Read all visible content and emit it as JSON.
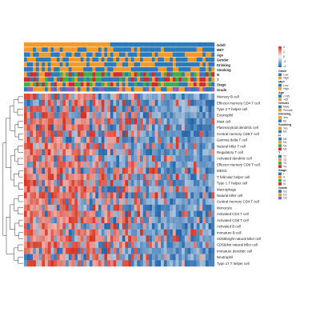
{
  "chart_data": {
    "type": "heatmap",
    "title": "",
    "xlabel": "",
    "ylabel": "",
    "annotation_tracks": [
      "Gdsfr",
      "MET",
      "Age",
      "Gender",
      "Drinking",
      "Smoking",
      "N",
      "T",
      "Stage",
      "Grade"
    ],
    "rows": [
      "Memory B cell",
      "Effector memory CD4 T cell",
      "Type 2 T helper cell",
      "Eosinophil",
      "Mast cell",
      "Plasmacytoid dendritic cell",
      "Central memory CD8 T cell",
      "Gamma delta T cell",
      "Natural killer T cell",
      "Regulatory T cell",
      "Activated dendritic cell",
      "Effector memory CD8 T cell",
      "MDSC",
      "T follicular helper cell",
      "Type 1 T helper cell",
      "Macrophage",
      "Natural killer cell",
      "Central memory CD4 T cell",
      "Monocyte",
      "Activated CD4 T cell",
      "Activated CD8 T cell",
      "Activated B cell",
      "Immature B cell",
      "CD56bright natural killer cell",
      "CD56dim natural killer cell",
      "Immature dendritic cell",
      "Neutrophil",
      "Type 17 T helper cell"
    ],
    "n_columns": 64,
    "red_fraction_by_column": [
      0.9,
      0.88,
      0.86,
      0.85,
      0.84,
      0.83,
      0.82,
      0.8,
      0.79,
      0.78,
      0.76,
      0.75,
      0.73,
      0.72,
      0.7,
      0.69,
      0.67,
      0.66,
      0.64,
      0.63,
      0.61,
      0.6,
      0.58,
      0.57,
      0.55,
      0.54,
      0.52,
      0.51,
      0.49,
      0.48,
      0.46,
      0.45,
      0.43,
      0.42,
      0.4,
      0.39,
      0.37,
      0.36,
      0.34,
      0.33,
      0.31,
      0.3,
      0.28,
      0.27,
      0.25,
      0.24,
      0.22,
      0.21,
      0.2,
      0.19,
      0.18,
      0.17,
      0.16,
      0.15,
      0.14,
      0.13,
      0.12,
      0.11,
      0.1,
      0.1,
      0.09,
      0.08,
      0.07,
      0.06
    ],
    "color_scale": {
      "low": "#2166ac",
      "mid": "#f7f7f7",
      "high": "#d7301f"
    },
    "legends": [
      {
        "title": "",
        "type": "gradient",
        "labels": [
          "4",
          "2",
          "0",
          "-2",
          "-4"
        ]
      },
      {
        "title": "Gdsfr",
        "type": "categorical",
        "entries": [
          {
            "label": "Low",
            "color": "#2b7bba"
          },
          {
            "label": "High",
            "color": "#f39a2b"
          }
        ]
      },
      {
        "title": "MET",
        "type": "categorical",
        "entries": [
          {
            "label": "Low",
            "color": "#2b7bba"
          },
          {
            "label": "High",
            "color": "#f39a2b"
          }
        ]
      },
      {
        "title": "Age",
        "type": "categorical",
        "entries": [
          {
            "label": "<=65",
            "color": "#2b7bba"
          },
          {
            "label": ">65",
            "color": "#f39a2b"
          }
        ]
      },
      {
        "title": "Gender",
        "type": "categorical",
        "entries": [
          {
            "label": "Male",
            "color": "#2b7bba"
          },
          {
            "label": "Female",
            "color": "#f39a2b"
          }
        ]
      },
      {
        "title": "Drinking",
        "type": "categorical",
        "entries": [
          {
            "label": "Yes",
            "color": "#f39a2b"
          },
          {
            "label": "No",
            "color": "#2b7bba"
          }
        ]
      },
      {
        "title": "Smoking",
        "type": "categorical",
        "entries": [
          {
            "label": "Yes",
            "color": "#f39a2b"
          },
          {
            "label": "No",
            "color": "#2b7bba"
          }
        ]
      },
      {
        "title": "N",
        "type": "categorical",
        "entries": [
          {
            "label": "N0",
            "color": "#2b7bba"
          },
          {
            "label": "N1",
            "color": "#f39a2b"
          },
          {
            "label": "N2",
            "color": "#3fae49"
          },
          {
            "label": "N3",
            "color": "#c9302c"
          }
        ]
      },
      {
        "title": "T",
        "type": "categorical",
        "entries": [
          {
            "label": "T1",
            "color": "#2b7bba"
          },
          {
            "label": "T2",
            "color": "#f39a2b"
          },
          {
            "label": "T3",
            "color": "#3fae49"
          },
          {
            "label": "T4",
            "color": "#c9302c"
          }
        ]
      },
      {
        "title": "Stage",
        "type": "categorical",
        "entries": [
          {
            "label": "I",
            "color": "#2b7bba"
          },
          {
            "label": "II",
            "color": "#f39a2b"
          },
          {
            "label": "III",
            "color": "#3fae49"
          },
          {
            "label": "IV",
            "color": "#c9302c"
          }
        ]
      },
      {
        "title": "Grade",
        "type": "categorical",
        "entries": [
          {
            "label": "G1",
            "color": "#2b7bba"
          },
          {
            "label": "G2",
            "color": "#f39a2b"
          },
          {
            "label": "G3",
            "color": "#8e5fb8"
          }
        ]
      }
    ]
  }
}
